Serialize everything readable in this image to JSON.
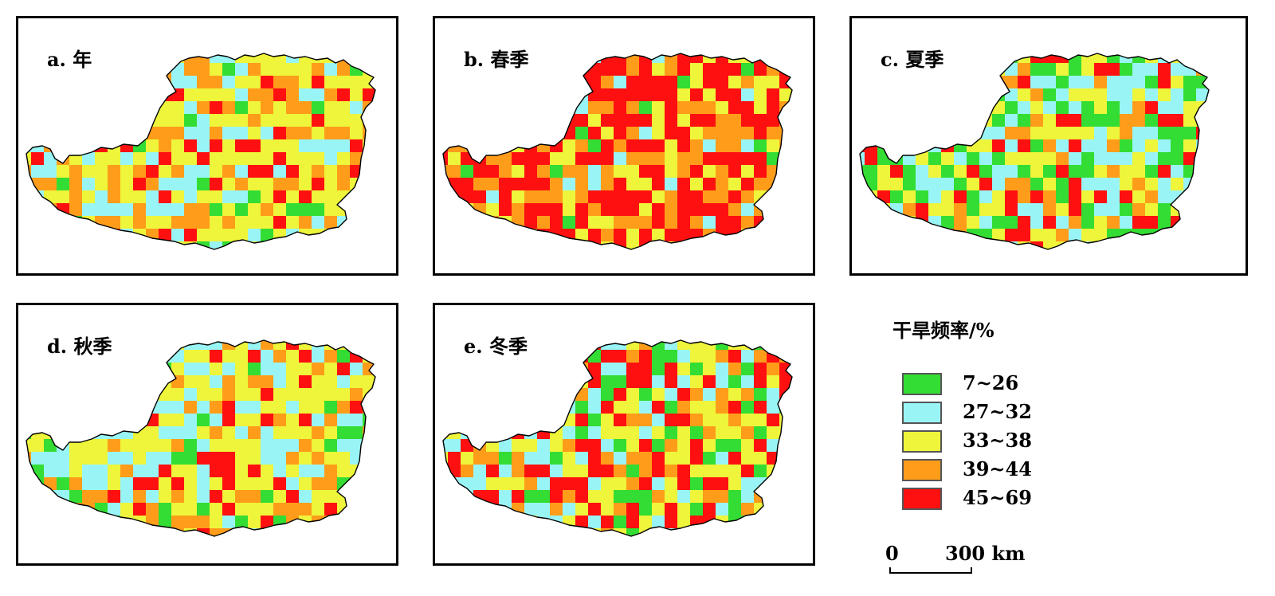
{
  "panels": [
    {
      "id": "a",
      "label": "a. 年",
      "seed": 11,
      "weights": [
        6,
        16,
        40,
        24,
        14
      ]
    },
    {
      "id": "b",
      "label": "b. 春季",
      "seed": 23,
      "weights": [
        3,
        7,
        18,
        26,
        46
      ]
    },
    {
      "id": "c",
      "label": "c. 夏季",
      "seed": 37,
      "weights": [
        24,
        28,
        24,
        10,
        14
      ]
    },
    {
      "id": "d",
      "label": "d. 秋季",
      "seed": 51,
      "weights": [
        8,
        26,
        34,
        20,
        12
      ]
    },
    {
      "id": "e",
      "label": "e. 冬季",
      "seed": 67,
      "weights": [
        12,
        22,
        32,
        10,
        24
      ]
    }
  ],
  "legend": {
    "title": "干旱频率/%",
    "classes": [
      {
        "label": "7~26",
        "color": "#33dd33"
      },
      {
        "label": "27~32",
        "color": "#99f5f5"
      },
      {
        "label": "33~38",
        "color": "#eef53a"
      },
      {
        "label": "39~44",
        "color": "#ff9d1a"
      },
      {
        "label": "45~69",
        "color": "#ff1010"
      }
    ]
  },
  "scale_bar": {
    "start": "0",
    "end": "300 km"
  }
}
